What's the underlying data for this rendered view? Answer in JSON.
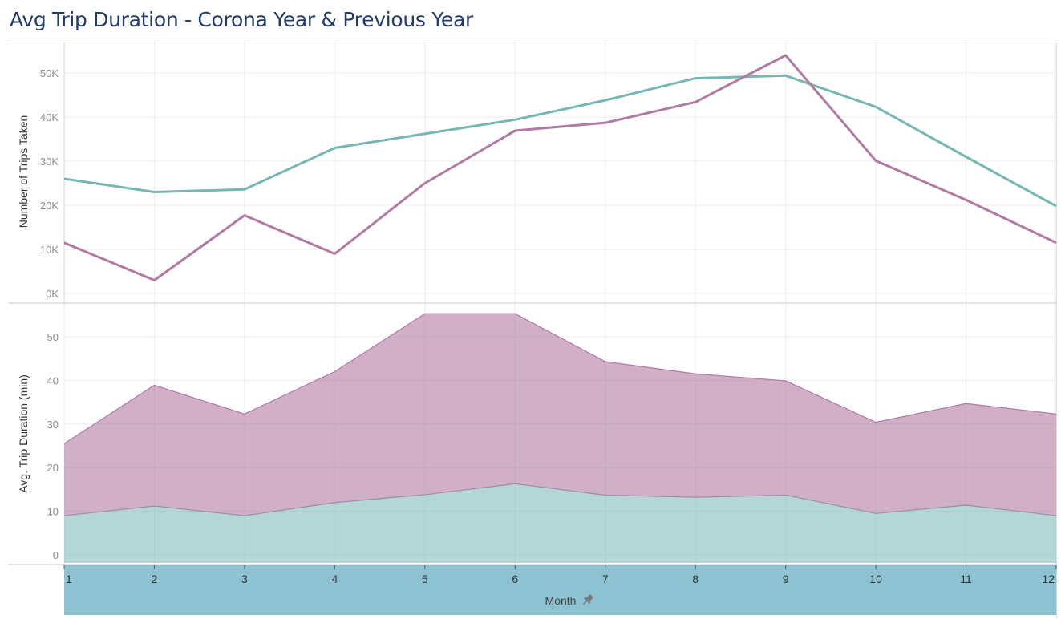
{
  "title": "Avg Trip Duration - Corona Year & Previous Year",
  "colors": {
    "teal": "#76b7b2",
    "purple": "#b07aa1",
    "header_band": "#8cc2d1",
    "grid": "#ededed",
    "divider": "#c8c8c8"
  },
  "chart_data": [
    {
      "type": "line",
      "xlabel": "Month",
      "ylabel": "Number of Trips Taken",
      "ylim": [
        0,
        56000
      ],
      "yticks": [
        "0K",
        "10K",
        "20K",
        "30K",
        "40K",
        "50K"
      ],
      "ytick_values": [
        0,
        10000,
        20000,
        30000,
        40000,
        50000
      ],
      "x": [
        1,
        2,
        3,
        4,
        5,
        6,
        7,
        8,
        9,
        10,
        11,
        12
      ],
      "series": [
        {
          "color": "#76b7b2",
          "values": [
            26000,
            23000,
            23600,
            33000,
            36200,
            39400,
            43800,
            48800,
            49400,
            42300,
            31000,
            19800
          ]
        },
        {
          "color": "#b07aa1",
          "values": [
            11500,
            3000,
            17700,
            9000,
            25000,
            36900,
            38700,
            43400,
            54000,
            30100,
            21200,
            11500
          ]
        }
      ],
      "grid": true
    },
    {
      "type": "area",
      "xlabel": "Month",
      "ylabel": "Avg. Trip Duration (min)",
      "ylim": [
        -2,
        57
      ],
      "yticks": [
        "0",
        "10",
        "20",
        "30",
        "40",
        "50"
      ],
      "ytick_values": [
        0,
        10,
        20,
        30,
        40,
        50
      ],
      "x": [
        1,
        2,
        3,
        4,
        5,
        6,
        7,
        8,
        9,
        10,
        11,
        12
      ],
      "stacked": true,
      "series": [
        {
          "color": "#76b7b2",
          "values": [
            9.0,
            11.2,
            9.0,
            12.0,
            13.8,
            16.3,
            13.7,
            13.2,
            13.7,
            9.5,
            11.4,
            9.0
          ]
        },
        {
          "color": "#b07aa1",
          "values": [
            16.5,
            27.7,
            23.3,
            30.0,
            41.5,
            39.0,
            30.6,
            28.3,
            26.2,
            20.9,
            23.3,
            23.3
          ]
        }
      ],
      "grid": true
    }
  ],
  "x_axis": {
    "ticks": [
      "1",
      "2",
      "3",
      "4",
      "5",
      "6",
      "7",
      "8",
      "9",
      "10",
      "11",
      "12"
    ],
    "label": "Month",
    "pin_icon": "pin-icon"
  }
}
